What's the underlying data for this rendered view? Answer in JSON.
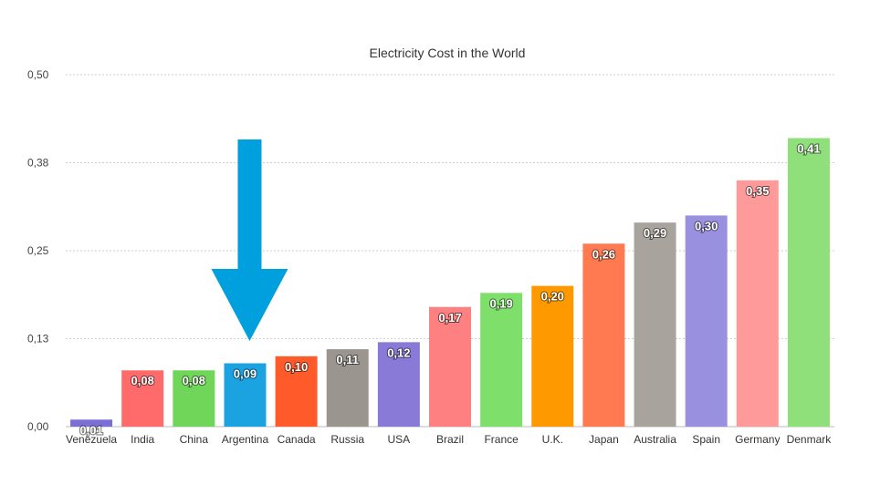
{
  "chart_data": {
    "type": "bar",
    "title": "Electricity Cost in the World",
    "xlabel": "",
    "ylabel": "",
    "ylim": [
      0,
      0.5
    ],
    "yticks": [
      "0,00",
      "0,13",
      "0,25",
      "0,38",
      "0,50"
    ],
    "ytick_values": [
      0,
      0.125,
      0.25,
      0.375,
      0.5
    ],
    "grid": true,
    "categories": [
      "Venezuela",
      "India",
      "China",
      "Argentina",
      "Canada",
      "Russia",
      "USA",
      "Brazil",
      "France",
      "U.K.",
      "Japan",
      "Australia",
      "Spain",
      "Germany",
      "Denmark"
    ],
    "values": [
      0.01,
      0.08,
      0.08,
      0.09,
      0.1,
      0.11,
      0.12,
      0.17,
      0.19,
      0.2,
      0.26,
      0.29,
      0.3,
      0.35,
      0.41
    ],
    "value_labels": [
      "0,01",
      "0,08",
      "0,08",
      "0,09",
      "0,10",
      "0,11",
      "0,12",
      "0,17",
      "0,19",
      "0,20",
      "0,26",
      "0,29",
      "0,30",
      "0,35",
      "0,41"
    ],
    "colors": [
      "#7b6fd6",
      "#ff6b6b",
      "#6fd65a",
      "#1aa3e0",
      "#ff5a2a",
      "#9a958e",
      "#8a7ad8",
      "#ff8080",
      "#7ee06a",
      "#ff9900",
      "#ff7a50",
      "#a8a39c",
      "#9990e0",
      "#ff9a9a",
      "#8fe07a"
    ],
    "annotation": {
      "type": "arrow",
      "direction": "down",
      "color": "#00a0de",
      "points_to": "Argentina"
    }
  }
}
